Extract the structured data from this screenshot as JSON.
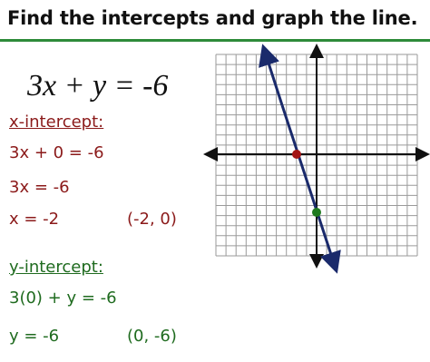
{
  "title": "Find the intercepts and graph the line.",
  "equation": "3x + y = -6",
  "x_intercept": {
    "heading": "x-intercept:",
    "steps": [
      "3x + 0 = -6",
      "3x = -6",
      "x = -2"
    ],
    "point": "(-2, 0)"
  },
  "y_intercept": {
    "heading": "y-intercept:",
    "steps": [
      "3(0) + y = -6",
      "y = -6"
    ],
    "point": "(0, -6)"
  }
}
